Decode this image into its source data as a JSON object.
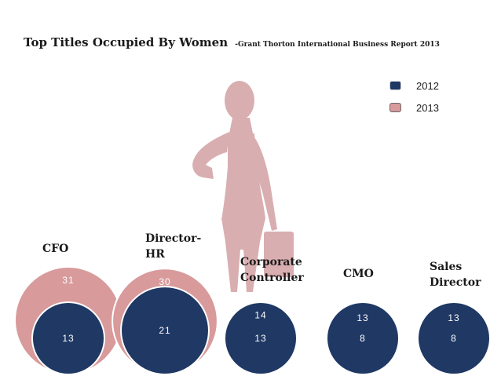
{
  "header": {
    "title": "Top Titles Occupied By Women",
    "subtitle": "-Grant Thorton International Business Report 2013"
  },
  "colors": {
    "s2012": "#1f3864",
    "s2013": "#d89a9b",
    "silhouette": "#d9aeb0"
  },
  "chart_data": {
    "type": "bubble",
    "title": "Top Titles Occupied By Women",
    "subtitle": "-Grant Thorton International Business Report 2013",
    "categories": [
      "CFO",
      "Director-HR",
      "Corporate Controller",
      "CMO",
      "Sales Director"
    ],
    "category_labels": [
      [
        "CFO"
      ],
      [
        "Director-",
        "HR"
      ],
      [
        "Corporate",
        "Controller"
      ],
      [
        "CMO"
      ],
      [
        "Sales",
        "Director"
      ]
    ],
    "series": [
      {
        "name": "2012",
        "values": [
          13,
          21,
          13,
          8,
          8
        ]
      },
      {
        "name": "2013",
        "values": [
          31,
          30,
          14,
          13,
          13
        ]
      }
    ],
    "legend": {
      "position": "top-right",
      "entries": [
        "2012",
        "2013"
      ]
    }
  }
}
